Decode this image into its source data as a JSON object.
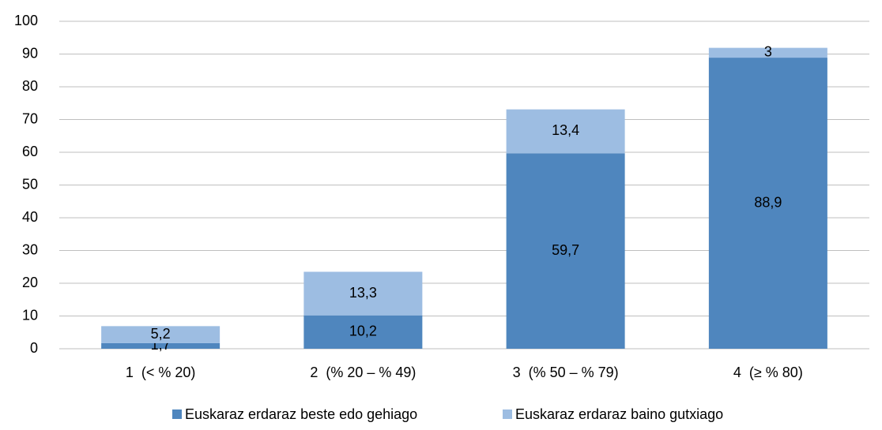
{
  "chart_data": {
    "type": "stacked_bar",
    "categories": [
      "1  (< % 20)",
      "2  (% 20 – % 49)",
      "3  (% 50 – % 79)",
      "4  (≥ % 80)"
    ],
    "series": [
      {
        "name": "Euskaraz erdaraz beste edo gehiago",
        "color": "#4f86be",
        "values": [
          1.7,
          10.2,
          59.7,
          88.9
        ],
        "value_labels": [
          "1,7",
          "10,2",
          "59,7",
          "88,9"
        ]
      },
      {
        "name": "Euskaraz erdaraz baino gutxiago",
        "color": "#9dbde2",
        "values": [
          5.2,
          13.3,
          13.4,
          3
        ],
        "value_labels": [
          "5,2",
          "13,3",
          "13,4",
          "3"
        ]
      }
    ],
    "ylim": [
      0,
      100
    ],
    "yticks": [
      0,
      10,
      20,
      30,
      40,
      50,
      60,
      70,
      80,
      90,
      100
    ],
    "grid": true,
    "legend": "bottom"
  }
}
